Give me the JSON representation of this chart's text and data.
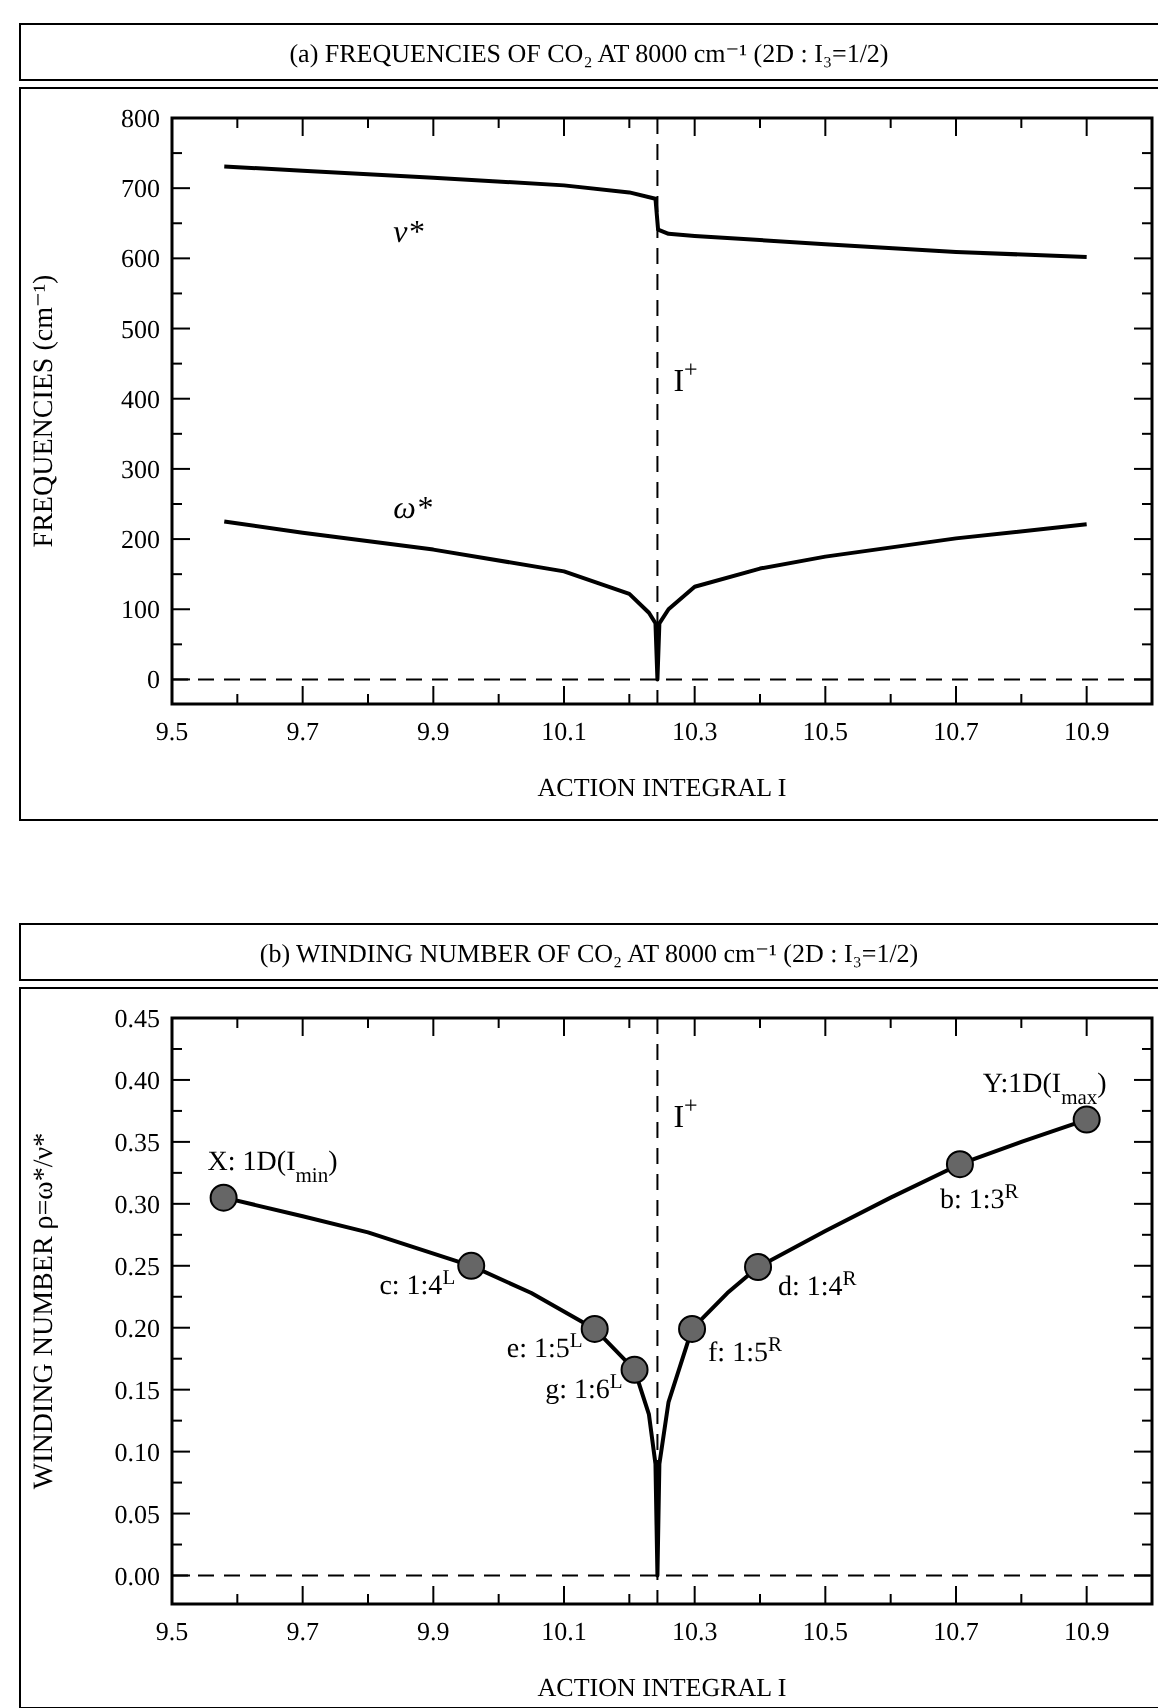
{
  "chart_data": [
    {
      "type": "line",
      "title": "(a) FREQUENCIES OF CO₂ AT 8000 cm⁻¹ (2D : I₃=1/2)",
      "xlabel": "ACTION INTEGRAL  I",
      "ylabel": "FREQUENCIES (cm⁻¹)",
      "xlim": [
        9.5,
        11.0
      ],
      "ylim": [
        -35,
        800
      ],
      "xticks": [
        9.5,
        {
          "value": 9.6,
          "label": null
        },
        9.7,
        {
          "value": 9.8,
          "label": null
        },
        9.9,
        {
          "value": 10.0,
          "label": null
        },
        10.1,
        {
          "value": 10.2,
          "label": null
        },
        10.3,
        {
          "value": 10.4,
          "label": null
        },
        10.5,
        {
          "value": 10.6,
          "label": null
        },
        10.7,
        {
          "value": 10.8,
          "label": null
        },
        10.9
      ],
      "yticks": [
        0,
        {
          "value": 50,
          "label": null
        },
        100,
        {
          "value": 150,
          "label": null
        },
        200,
        {
          "value": 250,
          "label": null
        },
        300,
        {
          "value": 350,
          "label": null
        },
        400,
        {
          "value": 450,
          "label": null
        },
        500,
        {
          "value": 550,
          "label": null
        },
        600,
        {
          "value": 650,
          "label": null
        },
        700,
        {
          "value": 750,
          "label": null
        },
        800
      ],
      "series": [
        {
          "name": "ν*",
          "color": "#000000",
          "x": [
            9.58,
            9.7,
            9.9,
            10.1,
            10.2,
            10.24,
            10.244,
            10.26,
            10.3,
            10.5,
            10.7,
            10.9
          ],
          "values": [
            731,
            725,
            715,
            704,
            694,
            685,
            641,
            635,
            632,
            620,
            609,
            602
          ]
        },
        {
          "name": "ω*",
          "color": "#000000",
          "x": [
            9.58,
            9.7,
            9.9,
            10.1,
            10.2,
            10.23,
            10.24,
            10.243,
            10.246,
            10.26,
            10.3,
            10.4,
            10.5,
            10.7,
            10.9
          ],
          "values": [
            225,
            209,
            185,
            154,
            122,
            95,
            80,
            0,
            80,
            100,
            132,
            158,
            175,
            201,
            221
          ]
        }
      ],
      "ref_lines": [
        {
          "axis": "x",
          "value": 10.243,
          "label": "I$^{+}$",
          "line_style": "dashed"
        },
        {
          "axis": "y",
          "value": 0,
          "line_style": "dashed"
        }
      ],
      "grid": false
    },
    {
      "type": "line",
      "title": "(b) WINDING NUMBER OF CO₂ AT 8000 cm⁻¹ (2D : I₃=1/2)",
      "xlabel": "ACTION INTEGRAL  I",
      "ylabel": "WINDING NUMBER  ρ=ω*/ν*",
      "xlim": [
        9.5,
        11.0
      ],
      "ylim": [
        -0.023,
        0.45
      ],
      "xticks": [
        9.5,
        {
          "value": 9.6,
          "label": null
        },
        9.7,
        {
          "value": 9.8,
          "label": null
        },
        9.9,
        {
          "value": 10.0,
          "label": null
        },
        10.1,
        {
          "value": 10.2,
          "label": null
        },
        10.3,
        {
          "value": 10.4,
          "label": null
        },
        10.5,
        {
          "value": 10.6,
          "label": null
        },
        10.7,
        {
          "value": 10.8,
          "label": null
        },
        10.9
      ],
      "yticks": [
        {
          "value": 0,
          "label": "0.00"
        },
        {
          "value": 0.025,
          "label": null
        },
        {
          "value": 0.05,
          "label": "0.05"
        },
        {
          "value": 0.075,
          "label": null
        },
        {
          "value": 0.1,
          "label": "0.10"
        },
        {
          "value": 0.125,
          "label": null
        },
        {
          "value": 0.15,
          "label": "0.15"
        },
        {
          "value": 0.175,
          "label": null
        },
        {
          "value": 0.2,
          "label": "0.20"
        },
        {
          "value": 0.225,
          "label": null
        },
        {
          "value": 0.25,
          "label": "0.25"
        },
        {
          "value": 0.275,
          "label": null
        },
        {
          "value": 0.3,
          "label": "0.30"
        },
        {
          "value": 0.325,
          "label": null
        },
        {
          "value": 0.35,
          "label": "0.35"
        },
        {
          "value": 0.375,
          "label": null
        },
        {
          "value": 0.4,
          "label": "0.40"
        },
        {
          "value": 0.425,
          "label": null
        },
        {
          "value": 0.45,
          "label": "0.45"
        }
      ],
      "series": [
        {
          "color": "#000000",
          "x": [
            9.58,
            9.7,
            9.8,
            9.958,
            10.05,
            10.147,
            10.208,
            10.23,
            10.24,
            10.243,
            10.246,
            10.26,
            10.296,
            10.35,
            10.397,
            10.5,
            10.6,
            10.706,
            10.8,
            10.9
          ],
          "values": [
            0.305,
            0.29,
            0.277,
            0.25,
            0.228,
            0.199,
            0.166,
            0.13,
            0.09,
            0,
            0.09,
            0.14,
            0.199,
            0.228,
            0.249,
            0.278,
            0.305,
            0.332,
            0.35,
            0.368
          ]
        },
        {
          "type": "scatter",
          "color": "#666666",
          "marker": "circle",
          "x": [
            9.579,
            9.958,
            10.147,
            10.208,
            10.296,
            10.397,
            10.706,
            10.9
          ],
          "values": [
            0.305,
            0.25,
            0.199,
            0.166,
            0.199,
            0.249,
            0.332,
            0.368
          ]
        }
      ],
      "annotations": [
        {
          "text": "X: 1D(I$_{min}$)",
          "x": 9.579,
          "y": 0.305
        },
        {
          "text": "c: 1:4$^{L}$",
          "x": 9.958,
          "y": 0.25
        },
        {
          "text": "e: 1:5$^{L}$",
          "x": 10.147,
          "y": 0.199
        },
        {
          "text": "g: 1:6$^{L}$",
          "x": 10.208,
          "y": 0.166
        },
        {
          "text": "f: 1:5$^{R}$",
          "x": 10.296,
          "y": 0.199
        },
        {
          "text": "d: 1:4$^{R}$",
          "x": 10.397,
          "y": 0.249
        },
        {
          "text": "b: 1:3$^{R}$",
          "x": 10.706,
          "y": 0.332
        },
        {
          "text": "Y:1D(I$_{max}$)",
          "x": 10.9,
          "y": 0.368
        }
      ],
      "ref_lines": [
        {
          "axis": "x",
          "value": 10.243,
          "label": "I$^{+}$",
          "line_style": "dashed"
        },
        {
          "axis": "y",
          "value": 0,
          "line_style": "dashed"
        }
      ],
      "grid": false
    }
  ]
}
